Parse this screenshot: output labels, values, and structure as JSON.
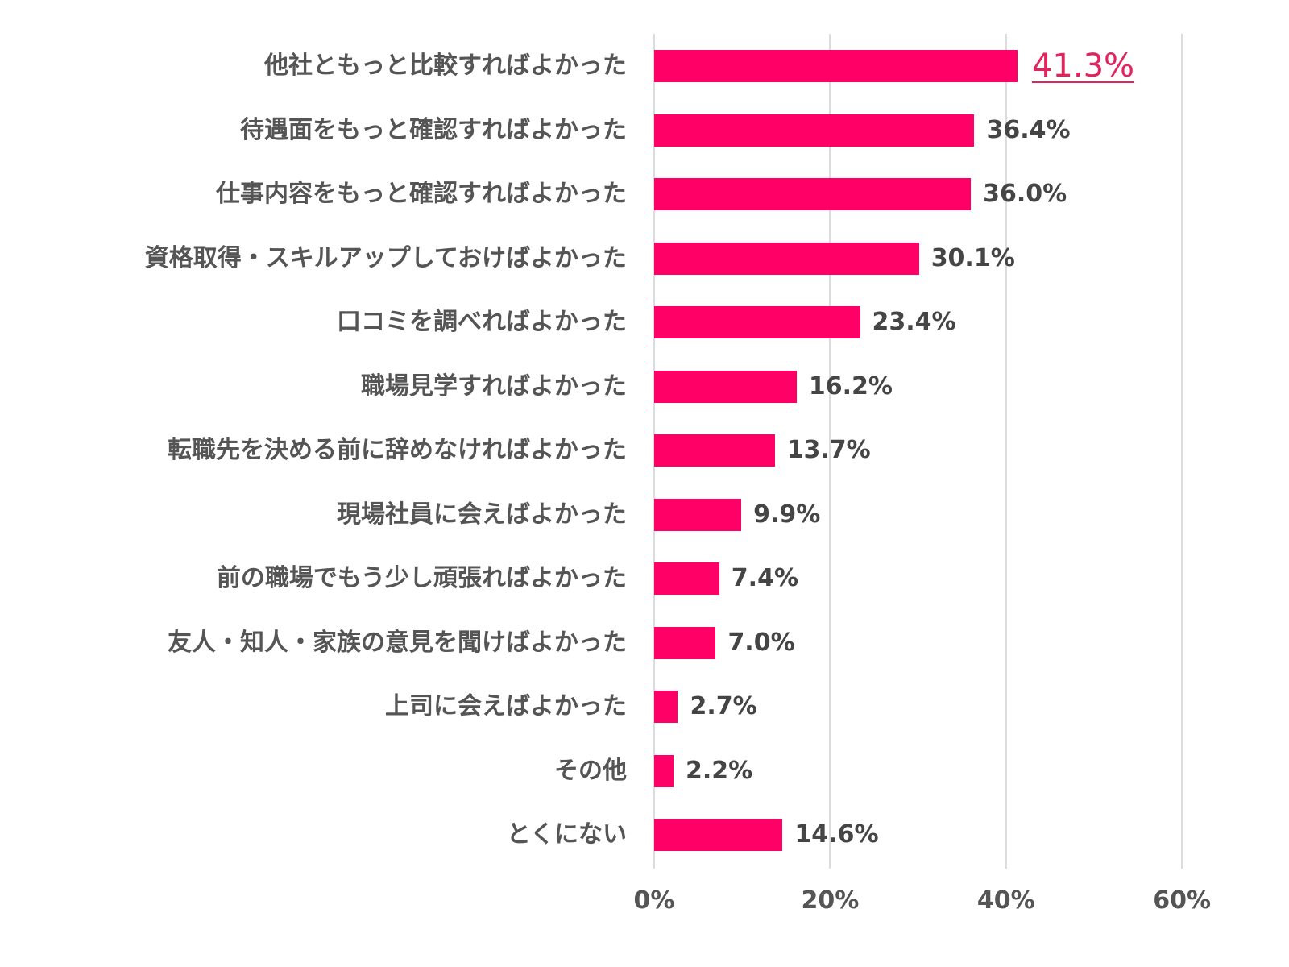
{
  "chart_data": {
    "type": "bar",
    "orientation": "horizontal",
    "title": "",
    "xlabel": "",
    "ylabel": "",
    "xlim": [
      0,
      60
    ],
    "grid": true,
    "legend": null,
    "bar_color": "#ff0066",
    "highlight_label_color": "#e0245e",
    "x_ticks": [
      "0%",
      "20%",
      "40%",
      "60%"
    ],
    "categories": [
      "他社ともっと比較すればよかった",
      "待遇面をもっと確認すればよかった",
      "仕事内容をもっと確認すればよかった",
      "資格取得・スキルアップしておけばよかった",
      "口コミを調べればよかった",
      "職場見学すればよかった",
      "転職先を決める前に辞めなければよかった",
      "現場社員に会えばよかった",
      "前の職場でもう少し頑張ればよかった",
      "友人・知人・家族の意見を聞けばよかった",
      "上司に会えばよかった",
      "その他",
      "とくにない"
    ],
    "values": [
      41.3,
      36.4,
      36.0,
      30.1,
      23.4,
      16.2,
      13.7,
      9.9,
      7.4,
      7.0,
      2.7,
      2.2,
      14.6
    ],
    "value_labels": [
      "41.3%",
      "36.4%",
      "36.0%",
      "30.1%",
      "23.4%",
      "16.2%",
      "13.7%",
      "9.9%",
      "7.4%",
      "7.0%",
      "2.7%",
      "2.2%",
      "14.6%"
    ]
  }
}
